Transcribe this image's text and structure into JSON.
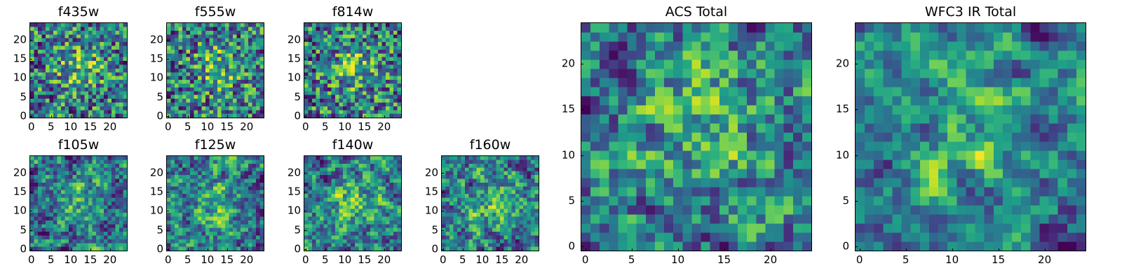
{
  "chart_data": [
    {
      "id": "f435w",
      "type": "heatmap",
      "title": "f435w",
      "grid_size": 25,
      "xlim": [
        0,
        24
      ],
      "ylim": [
        0,
        24
      ],
      "x_ticks": [
        0,
        5,
        10,
        15,
        20
      ],
      "y_ticks": [
        0,
        5,
        10,
        15,
        20
      ],
      "colormap": "viridis",
      "grid": false
    },
    {
      "id": "f555w",
      "type": "heatmap",
      "title": "f555w",
      "grid_size": 25,
      "xlim": [
        0,
        24
      ],
      "ylim": [
        0,
        24
      ],
      "x_ticks": [
        0,
        5,
        10,
        15,
        20
      ],
      "y_ticks": [
        0,
        5,
        10,
        15,
        20
      ],
      "colormap": "viridis",
      "grid": false
    },
    {
      "id": "f814w",
      "type": "heatmap",
      "title": "f814w",
      "grid_size": 25,
      "xlim": [
        0,
        24
      ],
      "ylim": [
        0,
        24
      ],
      "x_ticks": [
        0,
        5,
        10,
        15,
        20
      ],
      "y_ticks": [
        0,
        5,
        10,
        15,
        20
      ],
      "colormap": "viridis",
      "grid": false
    },
    {
      "id": "f105w",
      "type": "heatmap",
      "title": "f105w",
      "grid_size": 25,
      "xlim": [
        0,
        24
      ],
      "ylim": [
        0,
        24
      ],
      "x_ticks": [
        0,
        5,
        10,
        15,
        20
      ],
      "y_ticks": [
        0,
        5,
        10,
        15,
        20
      ],
      "colormap": "viridis",
      "grid": false
    },
    {
      "id": "f125w",
      "type": "heatmap",
      "title": "f125w",
      "grid_size": 25,
      "xlim": [
        0,
        24
      ],
      "ylim": [
        0,
        24
      ],
      "x_ticks": [
        0,
        5,
        10,
        15,
        20
      ],
      "y_ticks": [
        0,
        5,
        10,
        15,
        20
      ],
      "colormap": "viridis",
      "grid": false
    },
    {
      "id": "f140w",
      "type": "heatmap",
      "title": "f140w",
      "grid_size": 25,
      "xlim": [
        0,
        24
      ],
      "ylim": [
        0,
        24
      ],
      "x_ticks": [
        0,
        5,
        10,
        15,
        20
      ],
      "y_ticks": [
        0,
        5,
        10,
        15,
        20
      ],
      "colormap": "viridis",
      "grid": false
    },
    {
      "id": "f160w",
      "type": "heatmap",
      "title": "f160w",
      "grid_size": 25,
      "xlim": [
        0,
        24
      ],
      "ylim": [
        0,
        24
      ],
      "x_ticks": [
        0,
        5,
        10,
        15,
        20
      ],
      "y_ticks": [
        0,
        5,
        10,
        15,
        20
      ],
      "colormap": "viridis",
      "grid": false
    },
    {
      "id": "acs_total",
      "type": "heatmap",
      "title": "ACS Total",
      "grid_size": 25,
      "xlim": [
        0,
        24
      ],
      "ylim": [
        0,
        24
      ],
      "x_ticks": [
        0,
        5,
        10,
        15,
        20
      ],
      "y_ticks": [
        0,
        5,
        10,
        15,
        20
      ],
      "colormap": "viridis",
      "grid": false
    },
    {
      "id": "wfc3_ir_total",
      "type": "heatmap",
      "title": "WFC3 IR Total",
      "grid_size": 25,
      "xlim": [
        0,
        24
      ],
      "ylim": [
        0,
        24
      ],
      "x_ticks": [
        0,
        5,
        10,
        15,
        20
      ],
      "y_ticks": [
        0,
        5,
        10,
        15,
        20
      ],
      "colormap": "viridis",
      "grid": false
    }
  ]
}
